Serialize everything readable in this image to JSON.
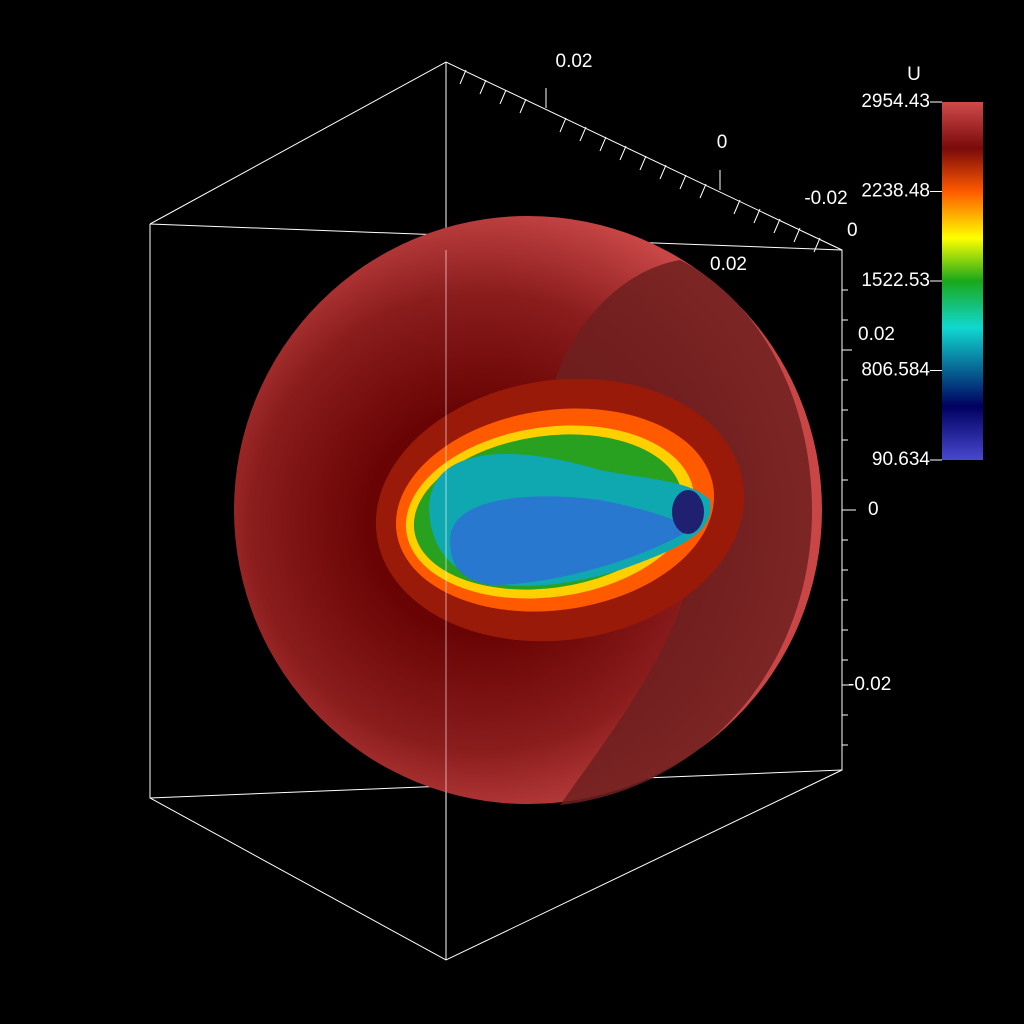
{
  "colorbar": {
    "title": "U",
    "ticks": [
      "2954.43",
      "2238.48",
      "1522.53",
      "806.584",
      "90.634"
    ]
  },
  "axes": {
    "top_axis": [
      "0.02",
      "0",
      "-0.02"
    ],
    "depth_axis": [
      "0",
      "0.02"
    ],
    "vertical_axis": [
      "0.02",
      "0",
      "-0.02"
    ]
  }
}
